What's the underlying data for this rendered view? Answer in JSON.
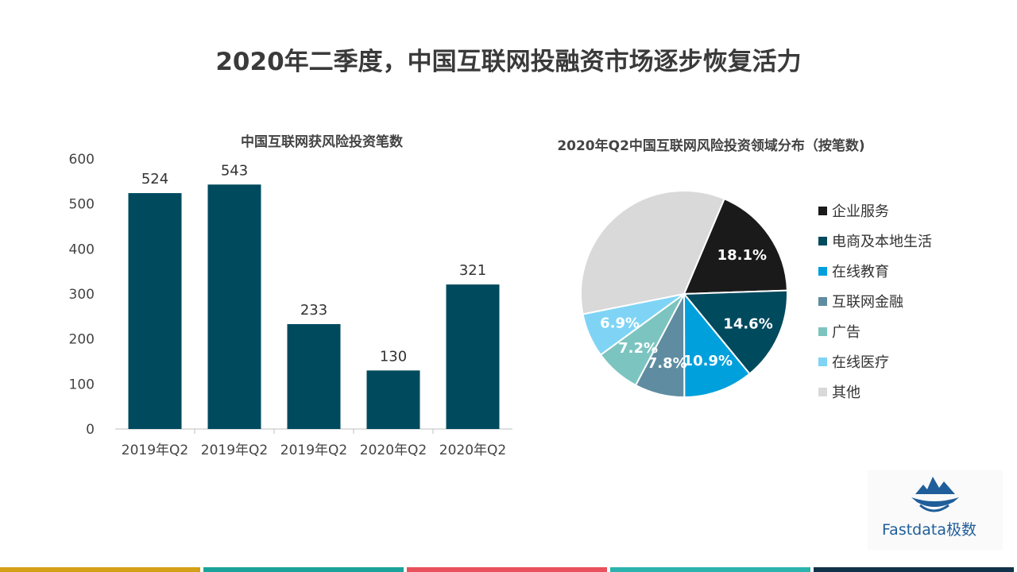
{
  "page_title": "2020年二季度，中国互联网投融资市场逐步恢复活力",
  "chart_data": [
    {
      "type": "bar",
      "title": "中国互联网获风险投资笔数",
      "categories": [
        "2019年Q2",
        "2019年Q2",
        "2019年Q2",
        "2020年Q2",
        "2020年Q2"
      ],
      "values": [
        524,
        543,
        233,
        130,
        321
      ],
      "ylim": [
        0,
        600
      ],
      "yticks": [
        0,
        100,
        200,
        300,
        400,
        500,
        600
      ],
      "bar_color": "#004a5e"
    },
    {
      "type": "pie",
      "title": "2020年Q2中国互联网风险投资领域分布（按笔数)",
      "slices": [
        {
          "label": "企业服务",
          "value": 18.1,
          "display": "18.1%",
          "color": "#1a1a1a"
        },
        {
          "label": "电商及本地生活",
          "value": 14.6,
          "display": "14.6%",
          "color": "#004a5e"
        },
        {
          "label": "在线教育",
          "value": 10.9,
          "display": "10.9%",
          "color": "#00a0dc"
        },
        {
          "label": "互联网金融",
          "value": 7.8,
          "display": "7.8%",
          "color": "#5f8ca0"
        },
        {
          "label": "广告",
          "value": 7.2,
          "display": "7.2%",
          "color": "#7cc4c0"
        },
        {
          "label": "在线医疗",
          "value": 6.9,
          "display": "6.9%",
          "color": "#7fd4f5"
        },
        {
          "label": "其他",
          "value": 34.5,
          "display": "",
          "color": "#d9d9d9"
        }
      ],
      "legend_position": "right"
    }
  ],
  "logo": {
    "text": "Fastdata极数",
    "color": "#1f5e9a"
  },
  "stripe_colors": [
    "#d4a017",
    "#1aa39a",
    "#e8505b",
    "#2bb3ad",
    "#10324a"
  ]
}
